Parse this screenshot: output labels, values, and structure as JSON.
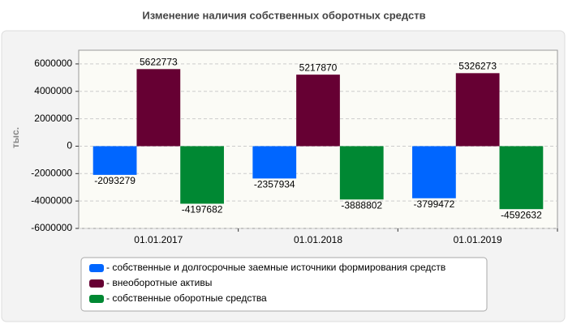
{
  "chart_data": {
    "type": "bar",
    "title": "Изменение наличия собственных оборотных средств",
    "y_label": "тыс.",
    "categories": [
      "01.01.2017",
      "01.01.2018",
      "01.01.2019"
    ],
    "series": [
      {
        "name": "- собственные и долгосрочные заемные источники формирования средств",
        "color": "#0066ff",
        "values": [
          -2093279,
          -2357934,
          -3799472
        ]
      },
      {
        "name": "- внеоборотные активы",
        "color": "#660033",
        "values": [
          5622773,
          5217870,
          5326273
        ]
      },
      {
        "name": "- собственные оборотные средства",
        "color": "#008833",
        "values": [
          -4197682,
          -3888802,
          -4592632
        ]
      }
    ],
    "ylim": [
      -6000000,
      7000000
    ],
    "yticks": [
      -6000000,
      -4000000,
      -2000000,
      0,
      2000000,
      4000000,
      6000000
    ],
    "grid": true,
    "legend": "bottom"
  }
}
